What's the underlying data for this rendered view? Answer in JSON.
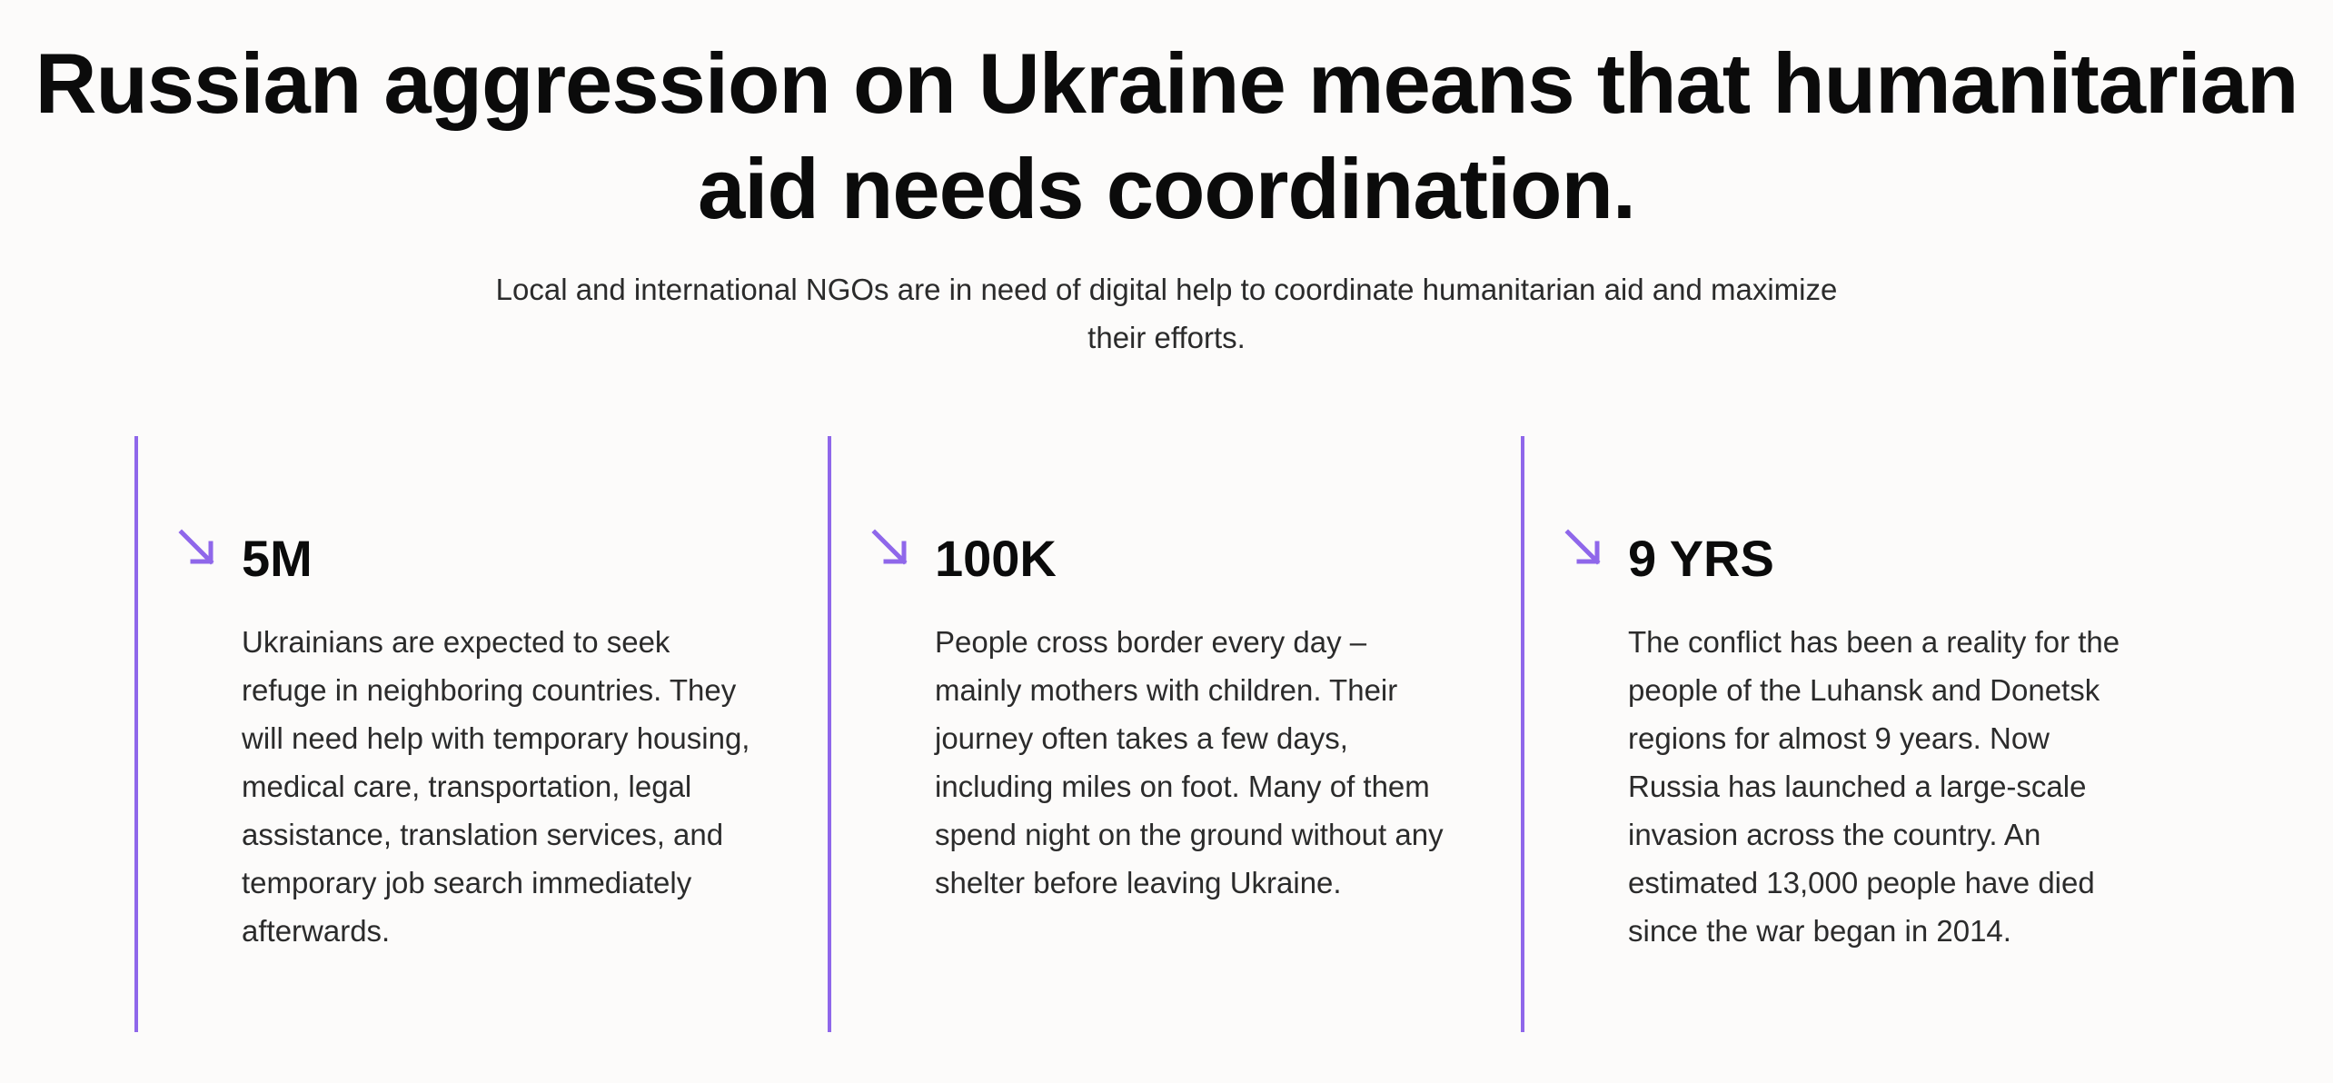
{
  "hero": {
    "title": "Russian aggression on Ukraine means that humanitarian aid needs coordination.",
    "subtitle": "Local and international NGOs are in need of digital help to coordinate humanitarian aid and maximize their efforts."
  },
  "colors": {
    "accent": "#8f67ea",
    "background": "#fcfbfa",
    "heading": "#0b0b0b",
    "body_text": "#2b2b2b"
  },
  "stats": [
    {
      "icon": "arrow-down-right-icon",
      "value": "5M",
      "text": "Ukrainians are expected to seek refuge in neighboring countries. They will need help with temporary housing, medical care, transportation, legal assistance, translation services, and temporary job search immediately afterwards."
    },
    {
      "icon": "arrow-down-right-icon",
      "value": "100K",
      "text": "People cross border every day – mainly mothers with children. Their journey often takes a few days, including miles on foot. Many of them spend night on the ground without any shelter before leaving Ukraine."
    },
    {
      "icon": "arrow-down-right-icon",
      "value": "9 YRS",
      "text": "The conflict has been a reality for the people of the Luhansk and Donetsk regions for almost 9 years. Now Russia has launched a large-scale invasion across the country. An estimated 13,000 people have died since the war began in 2014."
    }
  ]
}
